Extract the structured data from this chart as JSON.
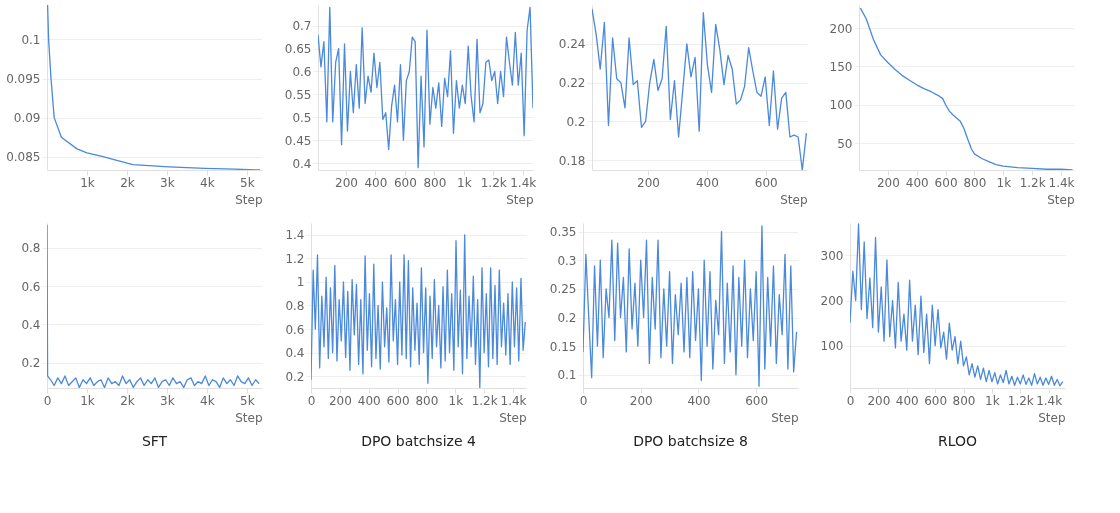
{
  "chart_data": [
    {
      "type": "line",
      "xlabel": "Step",
      "grid": "y",
      "xlim": [
        0,
        5380
      ],
      "ylim": [
        0.0833,
        0.1044
      ],
      "xticks": [
        {
          "value": 1000,
          "label": "1k"
        },
        {
          "value": 2000,
          "label": "2k"
        },
        {
          "value": 3000,
          "label": "3k"
        },
        {
          "value": 4000,
          "label": "4k"
        },
        {
          "value": 5000,
          "label": "5k"
        }
      ],
      "yticks": [
        0.085,
        0.09,
        0.095,
        0.1
      ],
      "x": [
        15,
        40,
        100,
        180,
        360,
        750,
        1000,
        1400,
        1770,
        2150,
        3050,
        3950,
        4700,
        5330
      ],
      "series": [
        {
          "color": "#4a89dc",
          "values": [
            0.1044,
            0.1,
            0.095,
            0.09,
            0.0875,
            0.086,
            0.0855,
            0.085,
            0.0845,
            0.084,
            0.0837,
            0.0835,
            0.0834,
            0.0833
          ]
        }
      ]
    },
    {
      "type": "line",
      "xlabel": "Step",
      "grid": "y",
      "xlim": [
        10,
        1470
      ],
      "ylim": [
        0.385,
        0.745
      ],
      "xticks": [
        200,
        400,
        600,
        800,
        {
          "value": 1000,
          "label": "1k"
        },
        {
          "value": 1200,
          "label": "1.2k"
        },
        {
          "value": 1400,
          "label": "1.4k"
        }
      ],
      "yticks": [
        0.4,
        0.45,
        0.5,
        0.55,
        0.6,
        0.65,
        0.7
      ],
      "x": [
        10,
        30,
        50,
        70,
        90,
        110,
        130,
        150,
        170,
        190,
        210,
        230,
        250,
        270,
        290,
        310,
        330,
        350,
        370,
        390,
        410,
        430,
        450,
        470,
        490,
        510,
        530,
        550,
        570,
        590,
        610,
        630,
        650,
        670,
        690,
        710,
        730,
        750,
        770,
        790,
        810,
        830,
        850,
        870,
        890,
        910,
        930,
        950,
        970,
        990,
        1010,
        1030,
        1050,
        1070,
        1090,
        1110,
        1130,
        1150,
        1170,
        1190,
        1210,
        1230,
        1250,
        1270,
        1290,
        1310,
        1330,
        1350,
        1370,
        1390,
        1410,
        1430,
        1450,
        1470
      ],
      "series": [
        {
          "color": "#4a89dc",
          "values": [
            0.68,
            0.61,
            0.665,
            0.49,
            0.74,
            0.49,
            0.62,
            0.65,
            0.44,
            0.66,
            0.47,
            0.6,
            0.51,
            0.615,
            0.52,
            0.695,
            0.53,
            0.59,
            0.555,
            0.64,
            0.565,
            0.62,
            0.495,
            0.51,
            0.43,
            0.525,
            0.57,
            0.49,
            0.615,
            0.45,
            0.58,
            0.6,
            0.675,
            0.665,
            0.39,
            0.59,
            0.435,
            0.69,
            0.485,
            0.565,
            0.52,
            0.575,
            0.48,
            0.585,
            0.545,
            0.645,
            0.465,
            0.58,
            0.52,
            0.57,
            0.53,
            0.655,
            0.545,
            0.49,
            0.67,
            0.51,
            0.53,
            0.62,
            0.625,
            0.58,
            0.6,
            0.53,
            0.6,
            0.545,
            0.675,
            0.62,
            0.57,
            0.685,
            0.57,
            0.64,
            0.46,
            0.69,
            0.74,
            0.52
          ]
        }
      ]
    },
    {
      "type": "line",
      "xlabel": "Step",
      "grid": "y",
      "xlim": [
        10,
        740
      ],
      "ylim": [
        0.175,
        0.26
      ],
      "xticks": [
        200,
        400,
        600
      ],
      "yticks": [
        0.18,
        0.2,
        0.22,
        0.24
      ],
      "x": [
        10,
        24,
        38,
        52,
        66,
        80,
        94,
        108,
        122,
        136,
        150,
        164,
        178,
        192,
        206,
        220,
        234,
        248,
        262,
        276,
        290,
        304,
        318,
        332,
        346,
        360,
        374,
        388,
        402,
        416,
        430,
        444,
        458,
        472,
        486,
        500,
        514,
        528,
        542,
        556,
        570,
        584,
        598,
        612,
        626,
        640,
        654,
        668,
        682,
        696,
        710,
        724,
        738
      ],
      "series": [
        {
          "color": "#4a89dc",
          "values": [
            0.258,
            0.245,
            0.227,
            0.251,
            0.198,
            0.243,
            0.222,
            0.22,
            0.207,
            0.243,
            0.219,
            0.221,
            0.197,
            0.2,
            0.22,
            0.232,
            0.216,
            0.222,
            0.249,
            0.201,
            0.221,
            0.192,
            0.216,
            0.24,
            0.223,
            0.233,
            0.195,
            0.256,
            0.229,
            0.215,
            0.25,
            0.237,
            0.219,
            0.234,
            0.227,
            0.209,
            0.211,
            0.218,
            0.238,
            0.226,
            0.215,
            0.213,
            0.223,
            0.198,
            0.226,
            0.196,
            0.212,
            0.215,
            0.192,
            0.193,
            0.192,
            0.175,
            0.194
          ]
        }
      ]
    },
    {
      "type": "line",
      "xlabel": "Step",
      "grid": "y",
      "xlim": [
        0,
        1490
      ],
      "ylim": [
        15,
        230
      ],
      "xticks": [
        200,
        400,
        600,
        800,
        {
          "value": 1000,
          "label": "1k"
        },
        {
          "value": 1200,
          "label": "1.2k"
        },
        {
          "value": 1400,
          "label": "1.4k"
        }
      ],
      "yticks": [
        50,
        100,
        150,
        200
      ],
      "x": [
        10,
        50,
        100,
        150,
        200,
        250,
        300,
        350,
        400,
        450,
        500,
        550,
        580,
        600,
        625,
        650,
        700,
        725,
        750,
        780,
        800,
        850,
        900,
        950,
        1000,
        1100,
        1200,
        1300,
        1400,
        1480
      ],
      "series": [
        {
          "color": "#4a89dc",
          "values": [
            226,
            212,
            185,
            165,
            155,
            146,
            138,
            132,
            126,
            121,
            117,
            112,
            108,
            100,
            92,
            87,
            79,
            70,
            57,
            42,
            36,
            30,
            26,
            22,
            20,
            18,
            17,
            16,
            16,
            15
          ]
        }
      ]
    },
    {
      "type": "line",
      "title": "SFT",
      "xlabel": "Step",
      "grid": "y",
      "xlim": [
        0,
        5380
      ],
      "ylim": [
        0.067,
        0.93
      ],
      "xticks": [
        0,
        {
          "value": 1000,
          "label": "1k"
        },
        {
          "value": 2000,
          "label": "2k"
        },
        {
          "value": 3000,
          "label": "3k"
        },
        {
          "value": 4000,
          "label": "4k"
        },
        {
          "value": 5000,
          "label": "5k"
        }
      ],
      "yticks": [
        0.2,
        0.4,
        0.6,
        0.8
      ],
      "x": [
        0,
        15,
        90,
        180,
        270,
        360,
        450,
        540,
        630,
        720,
        810,
        900,
        990,
        1080,
        1170,
        1260,
        1350,
        1440,
        1530,
        1620,
        1710,
        1800,
        1890,
        1980,
        2070,
        2160,
        2250,
        2340,
        2430,
        2520,
        2610,
        2700,
        2790,
        2880,
        2970,
        3060,
        3150,
        3240,
        3330,
        3420,
        3510,
        3600,
        3690,
        3780,
        3870,
        3960,
        4050,
        4140,
        4230,
        4320,
        4410,
        4500,
        4590,
        4680,
        4770,
        4860,
        4950,
        5040,
        5130,
        5220,
        5310
      ],
      "series": [
        {
          "color": "#4a89dc",
          "values": [
            0.92,
            0.13,
            0.11,
            0.08,
            0.12,
            0.09,
            0.13,
            0.08,
            0.1,
            0.12,
            0.07,
            0.11,
            0.09,
            0.12,
            0.08,
            0.1,
            0.11,
            0.07,
            0.12,
            0.09,
            0.1,
            0.08,
            0.13,
            0.09,
            0.11,
            0.07,
            0.1,
            0.12,
            0.08,
            0.11,
            0.09,
            0.12,
            0.07,
            0.1,
            0.11,
            0.08,
            0.12,
            0.09,
            0.1,
            0.07,
            0.11,
            0.12,
            0.08,
            0.1,
            0.09,
            0.13,
            0.08,
            0.11,
            0.1,
            0.07,
            0.12,
            0.09,
            0.11,
            0.08,
            0.13,
            0.1,
            0.09,
            0.12,
            0.08,
            0.11,
            0.09
          ]
        }
      ]
    },
    {
      "type": "line",
      "title": "DPO batchsize 4",
      "xlabel": "Step",
      "grid": "y",
      "xlim": [
        0,
        1490
      ],
      "ylim": [
        0.1,
        1.5
      ],
      "xticks": [
        0,
        200,
        400,
        600,
        800,
        {
          "value": 1000,
          "label": "1k"
        },
        {
          "value": 1200,
          "label": "1.2k"
        },
        {
          "value": 1400,
          "label": "1.4k"
        }
      ],
      "yticks": [
        0.2,
        0.4,
        0.6,
        0.8,
        1,
        1.2,
        1.4
      ],
      "x": [
        0,
        15,
        30,
        45,
        60,
        75,
        90,
        105,
        120,
        135,
        150,
        165,
        180,
        195,
        210,
        225,
        240,
        255,
        270,
        285,
        300,
        315,
        330,
        345,
        360,
        375,
        390,
        405,
        420,
        435,
        450,
        465,
        480,
        495,
        510,
        525,
        540,
        555,
        570,
        585,
        600,
        615,
        630,
        645,
        660,
        675,
        690,
        705,
        720,
        735,
        750,
        765,
        780,
        795,
        810,
        825,
        840,
        855,
        870,
        885,
        900,
        915,
        930,
        945,
        960,
        975,
        990,
        1005,
        1020,
        1035,
        1050,
        1065,
        1080,
        1095,
        1110,
        1125,
        1140,
        1155,
        1170,
        1185,
        1200,
        1215,
        1230,
        1245,
        1260,
        1275,
        1290,
        1305,
        1320,
        1335,
        1350,
        1365,
        1380,
        1395,
        1410,
        1425,
        1440,
        1455,
        1470,
        1485
      ],
      "series": [
        {
          "color": "#4a89dc",
          "values": [
            0.17,
            1.1,
            0.6,
            1.23,
            0.27,
            0.88,
            0.45,
            1.04,
            0.35,
            0.95,
            0.4,
            1.14,
            0.33,
            0.85,
            0.5,
            1.0,
            0.36,
            0.92,
            0.25,
            1.02,
            0.55,
            0.98,
            0.3,
            0.85,
            0.22,
            1.22,
            0.42,
            0.9,
            0.28,
            1.15,
            0.35,
            0.8,
            0.26,
            1.0,
            0.45,
            0.78,
            0.32,
            1.23,
            0.5,
            0.85,
            0.3,
            1.0,
            0.38,
            1.23,
            0.35,
            1.18,
            0.28,
            0.95,
            0.42,
            0.82,
            0.3,
            1.12,
            0.4,
            0.95,
            0.14,
            0.88,
            0.35,
            1.02,
            0.45,
            0.8,
            0.27,
            0.96,
            0.33,
            1.1,
            0.4,
            0.9,
            0.25,
            1.35,
            0.45,
            0.93,
            0.22,
            1.4,
            0.35,
            0.88,
            0.45,
            1.05,
            0.3,
            0.85,
            0.1,
            1.12,
            0.4,
            0.9,
            0.28,
            1.12,
            0.35,
            0.97,
            0.3,
            1.1,
            0.45,
            0.82,
            0.38,
            0.9,
            0.3,
            1.0,
            0.45,
            0.95,
            0.33,
            1.03,
            0.42,
            0.66
          ]
        }
      ]
    },
    {
      "type": "line",
      "title": "DPO batchsize 8",
      "xlabel": "Step",
      "grid": "y",
      "xlim": [
        0,
        745
      ],
      "ylim": [
        0.077,
        0.365
      ],
      "xticks": [
        0,
        200,
        400,
        600
      ],
      "yticks": [
        0.1,
        0.15,
        0.2,
        0.25,
        0.3,
        0.35
      ],
      "x": [
        0,
        10,
        20,
        30,
        40,
        50,
        60,
        70,
        80,
        90,
        100,
        110,
        120,
        130,
        140,
        150,
        160,
        170,
        180,
        190,
        200,
        210,
        220,
        230,
        240,
        250,
        260,
        270,
        280,
        290,
        300,
        310,
        320,
        330,
        340,
        350,
        360,
        370,
        380,
        390,
        400,
        410,
        420,
        430,
        440,
        450,
        460,
        470,
        480,
        490,
        500,
        510,
        520,
        530,
        540,
        550,
        560,
        570,
        580,
        590,
        600,
        610,
        620,
        630,
        640,
        650,
        660,
        670,
        680,
        690,
        700,
        710,
        720,
        730,
        740
      ],
      "series": [
        {
          "color": "#4a89dc",
          "values": [
            0.14,
            0.31,
            0.2,
            0.095,
            0.29,
            0.15,
            0.3,
            0.13,
            0.25,
            0.2,
            0.335,
            0.16,
            0.33,
            0.2,
            0.27,
            0.14,
            0.32,
            0.18,
            0.26,
            0.15,
            0.3,
            0.2,
            0.335,
            0.12,
            0.27,
            0.18,
            0.335,
            0.13,
            0.25,
            0.15,
            0.28,
            0.12,
            0.24,
            0.17,
            0.26,
            0.14,
            0.27,
            0.13,
            0.28,
            0.16,
            0.25,
            0.09,
            0.3,
            0.15,
            0.28,
            0.11,
            0.23,
            0.17,
            0.35,
            0.12,
            0.26,
            0.14,
            0.29,
            0.1,
            0.27,
            0.15,
            0.3,
            0.13,
            0.25,
            0.16,
            0.28,
            0.08,
            0.36,
            0.11,
            0.27,
            0.15,
            0.29,
            0.12,
            0.24,
            0.17,
            0.31,
            0.11,
            0.29,
            0.105,
            0.175
          ]
        }
      ]
    },
    {
      "type": "line",
      "title": "RLOO",
      "xlabel": "Step",
      "grid": "y",
      "xlim": [
        0,
        1515
      ],
      "ylim": [
        6,
        372
      ],
      "xticks": [
        0,
        200,
        400,
        600,
        800,
        {
          "value": 1000,
          "label": "1k"
        },
        {
          "value": 1200,
          "label": "1.2k"
        },
        {
          "value": 1400,
          "label": "1.4k"
        }
      ],
      "yticks": [
        100,
        200,
        300
      ],
      "x": [
        0,
        20,
        40,
        60,
        80,
        100,
        120,
        140,
        160,
        180,
        200,
        220,
        240,
        260,
        280,
        300,
        320,
        340,
        360,
        380,
        400,
        420,
        440,
        460,
        480,
        500,
        520,
        540,
        560,
        580,
        600,
        620,
        640,
        660,
        680,
        700,
        720,
        740,
        760,
        780,
        800,
        820,
        840,
        860,
        880,
        900,
        920,
        940,
        960,
        980,
        1000,
        1020,
        1040,
        1060,
        1080,
        1100,
        1120,
        1140,
        1160,
        1180,
        1200,
        1220,
        1240,
        1260,
        1280,
        1300,
        1320,
        1340,
        1360,
        1380,
        1400,
        1420,
        1440,
        1460,
        1480,
        1500
      ],
      "series": [
        {
          "color": "#4a89dc",
          "values": [
            150,
            265,
            200,
            370,
            180,
            330,
            160,
            250,
            140,
            340,
            130,
            230,
            110,
            290,
            120,
            200,
            95,
            240,
            110,
            170,
            90,
            245,
            110,
            190,
            80,
            210,
            85,
            170,
            60,
            190,
            100,
            180,
            95,
            130,
            70,
            150,
            90,
            120,
            60,
            110,
            55,
            75,
            35,
            60,
            30,
            55,
            25,
            50,
            20,
            45,
            20,
            40,
            15,
            35,
            18,
            45,
            15,
            32,
            12,
            30,
            15,
            35,
            14,
            28,
            12,
            38,
            15,
            30,
            12,
            28,
            14,
            32,
            12,
            25,
            11,
            20
          ]
        }
      ]
    }
  ]
}
